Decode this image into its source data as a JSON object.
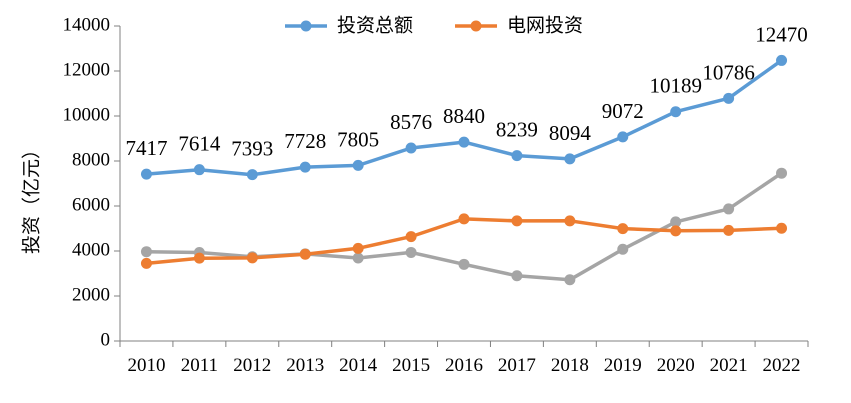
{
  "chart_data": {
    "type": "line",
    "categories": [
      "2010",
      "2011",
      "2012",
      "2013",
      "2014",
      "2015",
      "2016",
      "2017",
      "2018",
      "2019",
      "2020",
      "2021",
      "2022"
    ],
    "series": [
      {
        "name": "投资总额",
        "color": "#5B9BD5",
        "labeled": true,
        "values": [
          7417,
          7614,
          7393,
          7728,
          7805,
          8576,
          8840,
          8239,
          8094,
          9072,
          10189,
          10786,
          12470
        ]
      },
      {
        "name": "电网投资",
        "color": "#ED7D31",
        "labeled": false,
        "values": [
          3448,
          3682,
          3693,
          3856,
          4118,
          4640,
          5426,
          5339,
          5340,
          4995,
          4896,
          4916,
          5012
        ]
      },
      {
        "name": "",
        "color": "#A5A5A5",
        "labeled": false,
        "values": [
          3969,
          3932,
          3744,
          3872,
          3687,
          3936,
          3408,
          2900,
          2721,
          4077,
          5292,
          5870,
          7458
        ]
      }
    ],
    "ylabel": "投资（亿元）",
    "xlabel": "",
    "ylim": [
      0,
      14000
    ],
    "yticks": [
      0,
      2000,
      4000,
      6000,
      8000,
      10000,
      12000,
      14000
    ],
    "legend_position": "top",
    "grid": false
  }
}
